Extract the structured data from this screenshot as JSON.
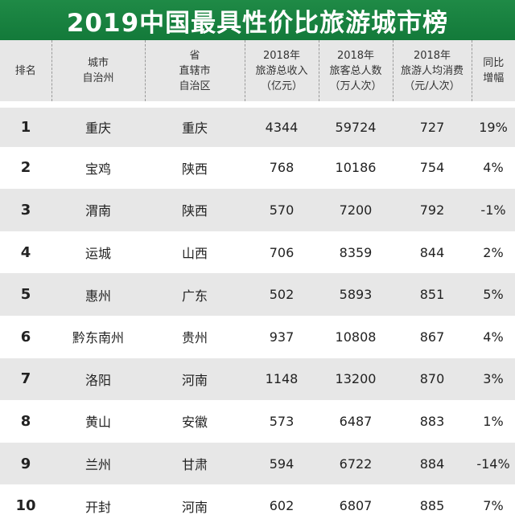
{
  "title": "2019中国最具性价比旅游城市榜",
  "headers": [
    [
      "排名"
    ],
    [
      "城市",
      "自治州"
    ],
    [
      "省",
      "直辖市",
      "自治区"
    ],
    [
      "2018年",
      "旅游总收入",
      "（亿元）"
    ],
    [
      "2018年",
      "旅客总人数",
      "（万人次）"
    ],
    [
      "2018年",
      "旅游人均消费",
      "（元/人次）"
    ],
    [
      "同比",
      "增幅"
    ]
  ],
  "rows": [
    [
      "1",
      "重庆",
      "重庆",
      "4344",
      "59724",
      "727",
      "19%"
    ],
    [
      "2",
      "宝鸡",
      "陕西",
      "768",
      "10186",
      "754",
      "4%"
    ],
    [
      "3",
      "渭南",
      "陕西",
      "570",
      "7200",
      "792",
      "-1%"
    ],
    [
      "4",
      "运城",
      "山西",
      "706",
      "8359",
      "844",
      "2%"
    ],
    [
      "5",
      "惠州",
      "广东",
      "502",
      "5893",
      "851",
      "5%"
    ],
    [
      "6",
      "黔东南州",
      "贵州",
      "937",
      "10808",
      "867",
      "4%"
    ],
    [
      "7",
      "洛阳",
      "河南",
      "1148",
      "13200",
      "870",
      "3%"
    ],
    [
      "8",
      "黄山",
      "安徽",
      "573",
      "6487",
      "883",
      "1%"
    ],
    [
      "9",
      "兰州",
      "甘肃",
      "594",
      "6722",
      "884",
      "-14%"
    ],
    [
      "10",
      "开封",
      "河南",
      "602",
      "6807",
      "885",
      "7%"
    ]
  ],
  "colors": {
    "title_bg": "#137a3a",
    "stripe": "#e7e7e7"
  }
}
